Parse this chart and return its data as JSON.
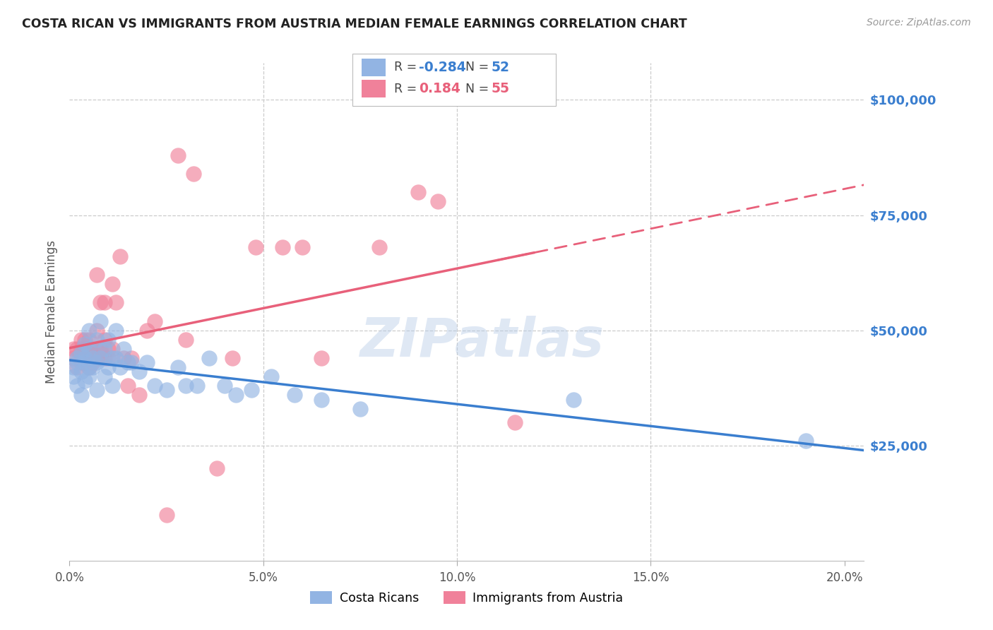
{
  "title": "COSTA RICAN VS IMMIGRANTS FROM AUSTRIA MEDIAN FEMALE EARNINGS CORRELATION CHART",
  "source": "Source: ZipAtlas.com",
  "xlabel_ticks": [
    "0.0%",
    "5.0%",
    "10.0%",
    "15.0%",
    "20.0%"
  ],
  "xlabel_vals": [
    0.0,
    0.05,
    0.1,
    0.15,
    0.2
  ],
  "ylabel": "Median Female Earnings",
  "ytick_vals": [
    0,
    25000,
    50000,
    75000,
    100000
  ],
  "ytick_labels": [
    "",
    "$25,000",
    "$50,000",
    "$75,000",
    "$100,000"
  ],
  "xmin": 0.0,
  "xmax": 0.205,
  "ymin": 0,
  "ymax": 108000,
  "blue_R": -0.284,
  "blue_N": 52,
  "pink_R": 0.184,
  "pink_N": 55,
  "blue_color": "#92b4e3",
  "pink_color": "#f0819a",
  "blue_line_color": "#3a7ecf",
  "pink_line_color": "#e8607a",
  "watermark": "ZIPatlas",
  "blue_scatter_x": [
    0.001,
    0.001,
    0.002,
    0.002,
    0.002,
    0.003,
    0.003,
    0.003,
    0.004,
    0.004,
    0.004,
    0.004,
    0.005,
    0.005,
    0.005,
    0.005,
    0.006,
    0.006,
    0.007,
    0.007,
    0.007,
    0.008,
    0.008,
    0.009,
    0.009,
    0.01,
    0.01,
    0.011,
    0.011,
    0.012,
    0.012,
    0.013,
    0.014,
    0.015,
    0.016,
    0.018,
    0.02,
    0.022,
    0.025,
    0.028,
    0.03,
    0.033,
    0.036,
    0.04,
    0.043,
    0.047,
    0.052,
    0.058,
    0.065,
    0.075,
    0.13,
    0.19
  ],
  "blue_scatter_y": [
    42000,
    40000,
    44000,
    38000,
    43000,
    45000,
    41000,
    36000,
    43000,
    47000,
    39000,
    44000,
    50000,
    42000,
    46000,
    40000,
    44000,
    42000,
    48000,
    43000,
    37000,
    52000,
    44000,
    46000,
    40000,
    48000,
    42000,
    44000,
    38000,
    50000,
    44000,
    42000,
    46000,
    43000,
    43000,
    41000,
    43000,
    38000,
    37000,
    42000,
    38000,
    38000,
    44000,
    38000,
    36000,
    37000,
    40000,
    36000,
    35000,
    33000,
    35000,
    26000
  ],
  "pink_scatter_x": [
    0.001,
    0.001,
    0.002,
    0.002,
    0.003,
    0.003,
    0.003,
    0.003,
    0.004,
    0.004,
    0.004,
    0.005,
    0.005,
    0.005,
    0.005,
    0.005,
    0.006,
    0.006,
    0.006,
    0.007,
    0.007,
    0.007,
    0.007,
    0.008,
    0.008,
    0.008,
    0.009,
    0.009,
    0.009,
    0.01,
    0.01,
    0.011,
    0.011,
    0.012,
    0.013,
    0.014,
    0.015,
    0.016,
    0.018,
    0.02,
    0.022,
    0.025,
    0.028,
    0.032,
    0.038,
    0.042,
    0.048,
    0.055,
    0.065,
    0.08,
    0.095,
    0.115,
    0.03,
    0.06,
    0.09
  ],
  "pink_scatter_y": [
    44000,
    46000,
    42000,
    46000,
    44000,
    46000,
    48000,
    43000,
    46000,
    44000,
    48000,
    44000,
    46000,
    42000,
    46000,
    48000,
    45000,
    43000,
    46000,
    50000,
    46000,
    44000,
    62000,
    56000,
    46000,
    44000,
    48000,
    44000,
    56000,
    46000,
    44000,
    46000,
    60000,
    56000,
    66000,
    44000,
    38000,
    44000,
    36000,
    50000,
    52000,
    10000,
    88000,
    84000,
    20000,
    44000,
    68000,
    68000,
    44000,
    68000,
    78000,
    30000,
    48000,
    68000,
    80000
  ]
}
